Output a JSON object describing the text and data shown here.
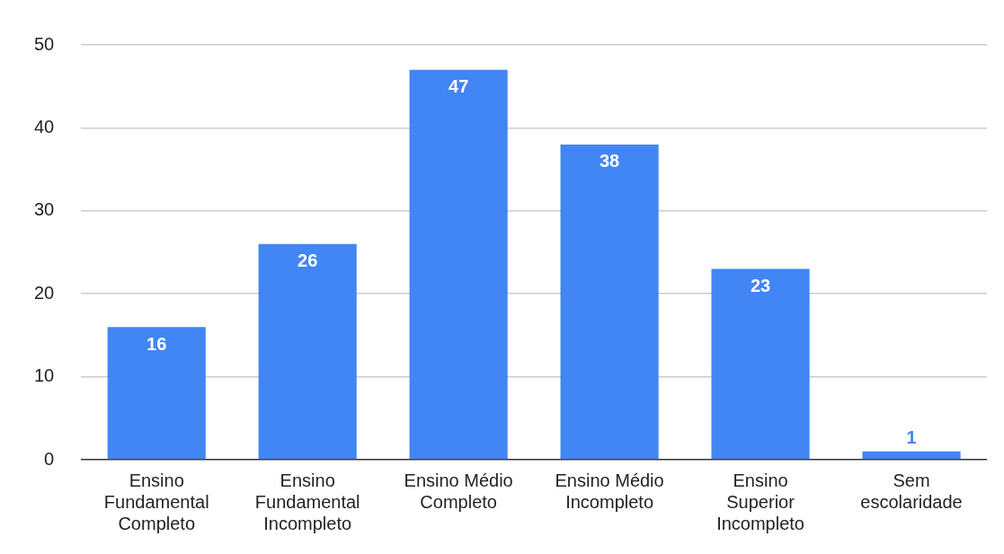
{
  "chart_data": {
    "type": "bar",
    "categories": [
      "Ensino Fundamental Completo",
      "Ensino Fundamental Incompleto",
      "Ensino Médio Completo",
      "Ensino Médio Incompleto",
      "Ensino Superior Incompleto",
      "Sem escolaridade"
    ],
    "values": [
      16,
      26,
      47,
      38,
      23,
      1
    ],
    "color": "#4285f4",
    "ylim": [
      0,
      50
    ],
    "yticks": [
      0,
      10,
      20,
      30,
      40,
      50
    ],
    "grid": "y",
    "data_labels": true,
    "legend": false
  }
}
